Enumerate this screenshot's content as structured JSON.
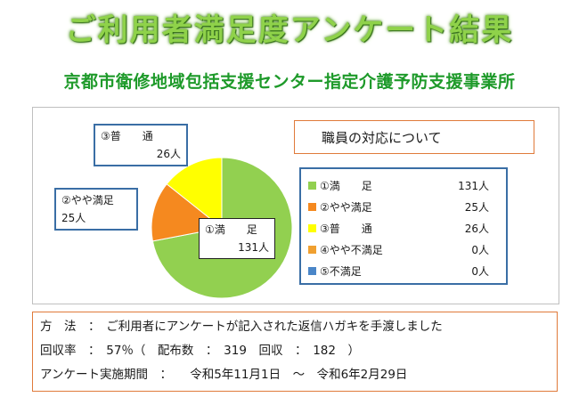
{
  "main_title": "ご利用者満足度アンケート結果",
  "sub_title": "京都市衛修地域包括支援センター指定介護予防支援事業所",
  "chart_data": {
    "type": "pie",
    "title": "職員の対応について",
    "categories": [
      "①満　　足",
      "②やや満足",
      "③普　　通",
      "④やや不満足",
      "⑤不満足"
    ],
    "values": [
      131,
      25,
      26,
      0,
      0
    ],
    "value_labels": [
      "131人",
      "25人",
      "26人",
      "0人",
      "0人"
    ],
    "colors": [
      "#92d050",
      "#f5891f",
      "#ffff00",
      "#f0a030",
      "#4a86c8"
    ],
    "legend_position": "right"
  },
  "callouts": [
    {
      "label": "③普　　通",
      "value": "26人"
    },
    {
      "label": "②やや満足",
      "value": "25人"
    },
    {
      "label": "①満　　足",
      "value": "131人"
    }
  ],
  "info": {
    "method": "方　法　：　ご利用者にアンケートが記入された返信ハガキを手渡しました",
    "rate": "回収率　：　57％（　配布数　：　319　回収　：　182　）",
    "period": "アンケート実施期間　：　　令和5年11月1日　～　令和6年2月29日"
  }
}
